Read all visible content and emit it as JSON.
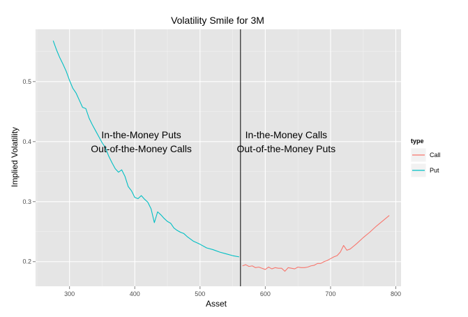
{
  "chart_data": {
    "type": "line",
    "title": "Volatility Smile for 3M",
    "xlabel": "Asset",
    "ylabel": "Implied Volatility",
    "xlim": [
      248,
      808
    ],
    "ylim": [
      0.159,
      0.587
    ],
    "x_ticks": [
      300,
      400,
      500,
      600,
      700,
      800
    ],
    "x_tick_labels": [
      "300",
      "400",
      "500",
      "600",
      "700",
      "800"
    ],
    "y_ticks": [
      0.2,
      0.3,
      0.4,
      0.5
    ],
    "y_tick_labels": [
      "0.2",
      "0.3",
      "0.4",
      "0.5"
    ],
    "grid": true,
    "vline": 562,
    "annotations": [
      {
        "lines": [
          "In-the-Money Puts",
          "Out-of-the-Money Calls"
        ],
        "x": 410,
        "y": 0.4
      },
      {
        "lines": [
          "In-the-Money Calls",
          "Out-of-the-Money Puts"
        ],
        "x": 632,
        "y": 0.4
      }
    ],
    "legend": {
      "title": "type",
      "position": "right",
      "entries": [
        {
          "label": "Call",
          "color": "#F8766D"
        },
        {
          "label": "Put",
          "color": "#00BFC4"
        }
      ]
    },
    "series": [
      {
        "name": "Put",
        "color": "#00BFC4",
        "x": [
          275,
          280,
          285,
          290,
          295,
          300,
          305,
          310,
          315,
          320,
          325,
          330,
          335,
          340,
          345,
          350,
          355,
          360,
          365,
          370,
          375,
          380,
          385,
          390,
          395,
          400,
          405,
          410,
          415,
          420,
          425,
          430,
          435,
          440,
          445,
          450,
          455,
          460,
          465,
          470,
          475,
          480,
          490,
          500,
          510,
          520,
          530,
          540,
          550,
          560
        ],
        "values": [
          0.568,
          0.553,
          0.54,
          0.529,
          0.517,
          0.502,
          0.489,
          0.481,
          0.469,
          0.457,
          0.455,
          0.439,
          0.428,
          0.418,
          0.408,
          0.398,
          0.39,
          0.376,
          0.365,
          0.355,
          0.349,
          0.353,
          0.342,
          0.325,
          0.318,
          0.307,
          0.305,
          0.31,
          0.304,
          0.299,
          0.288,
          0.265,
          0.283,
          0.278,
          0.272,
          0.267,
          0.264,
          0.256,
          0.252,
          0.249,
          0.247,
          0.242,
          0.234,
          0.229,
          0.223,
          0.22,
          0.216,
          0.213,
          0.21,
          0.208
        ]
      },
      {
        "name": "Call",
        "color": "#F8766D",
        "x": [
          565,
          570,
          575,
          580,
          585,
          590,
          595,
          600,
          605,
          610,
          615,
          620,
          625,
          630,
          635,
          640,
          645,
          650,
          655,
          660,
          665,
          670,
          675,
          680,
          685,
          690,
          695,
          700,
          705,
          710,
          715,
          720,
          725,
          730,
          740,
          750,
          760,
          770,
          780,
          790
        ],
        "values": [
          0.193,
          0.195,
          0.192,
          0.193,
          0.19,
          0.191,
          0.189,
          0.187,
          0.191,
          0.188,
          0.19,
          0.189,
          0.189,
          0.184,
          0.19,
          0.189,
          0.188,
          0.191,
          0.19,
          0.19,
          0.191,
          0.193,
          0.194,
          0.197,
          0.197,
          0.2,
          0.202,
          0.205,
          0.208,
          0.21,
          0.216,
          0.227,
          0.219,
          0.221,
          0.23,
          0.24,
          0.249,
          0.259,
          0.268,
          0.277
        ]
      }
    ]
  }
}
